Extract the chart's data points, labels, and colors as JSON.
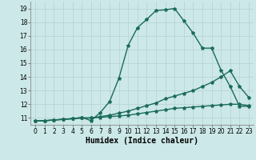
{
  "xlabel": "Humidex (Indice chaleur)",
  "bg_color": "#cce8e8",
  "grid_color": "#b8d4d4",
  "line_color": "#1a6b5a",
  "xlim": [
    -0.5,
    23.5
  ],
  "ylim": [
    10.5,
    19.5
  ],
  "xticks": [
    0,
    1,
    2,
    3,
    4,
    5,
    6,
    7,
    8,
    9,
    10,
    11,
    12,
    13,
    14,
    15,
    16,
    17,
    18,
    19,
    20,
    21,
    22,
    23
  ],
  "yticks": [
    11,
    12,
    13,
    14,
    15,
    16,
    17,
    18,
    19
  ],
  "line1_x": [
    0,
    1,
    2,
    3,
    4,
    5,
    6,
    7,
    8,
    9,
    10,
    11,
    12,
    13,
    14,
    15,
    16,
    17,
    18,
    19,
    20,
    21,
    22,
    23
  ],
  "line1_y": [
    10.8,
    10.8,
    10.85,
    10.9,
    10.95,
    11.05,
    10.8,
    11.4,
    12.2,
    13.9,
    16.3,
    17.6,
    18.2,
    18.85,
    18.9,
    19.0,
    18.1,
    17.2,
    16.1,
    16.1,
    14.5,
    13.3,
    11.85,
    11.85
  ],
  "line2_x": [
    0,
    1,
    2,
    3,
    4,
    5,
    6,
    7,
    8,
    9,
    10,
    11,
    12,
    13,
    14,
    15,
    16,
    17,
    18,
    19,
    20,
    21,
    22,
    23
  ],
  "line2_y": [
    10.8,
    10.8,
    10.85,
    10.9,
    10.95,
    11.0,
    11.0,
    11.1,
    11.2,
    11.35,
    11.5,
    11.7,
    11.9,
    12.1,
    12.4,
    12.6,
    12.8,
    13.0,
    13.3,
    13.6,
    14.0,
    14.45,
    13.3,
    12.5
  ],
  "line3_x": [
    0,
    1,
    2,
    3,
    4,
    5,
    6,
    7,
    8,
    9,
    10,
    11,
    12,
    13,
    14,
    15,
    16,
    17,
    18,
    19,
    20,
    21,
    22,
    23
  ],
  "line3_y": [
    10.8,
    10.8,
    10.85,
    10.9,
    10.95,
    11.0,
    11.0,
    11.05,
    11.1,
    11.15,
    11.2,
    11.3,
    11.4,
    11.5,
    11.6,
    11.7,
    11.75,
    11.8,
    11.85,
    11.9,
    11.95,
    12.0,
    12.0,
    11.9
  ],
  "marker": "*",
  "marker_size": 3,
  "line_width": 1.0,
  "tick_fontsize": 5.5,
  "xlabel_fontsize": 7
}
